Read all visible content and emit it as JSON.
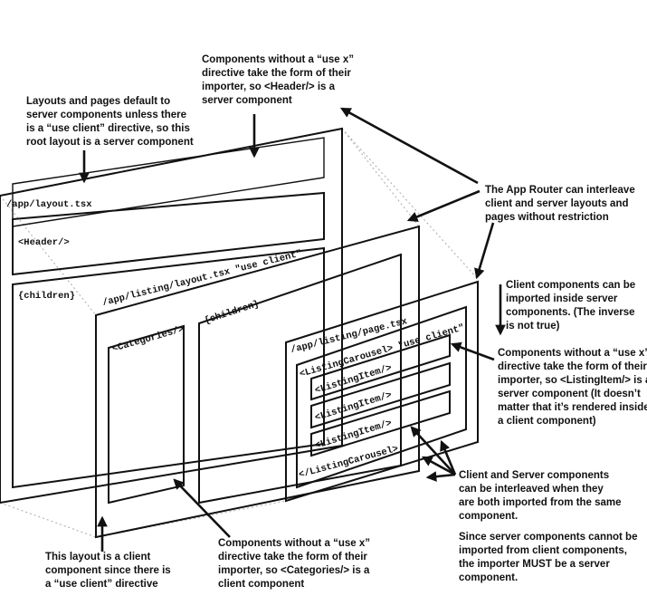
{
  "colors": {
    "server": "#1ee0ee",
    "client": "#f2ec1c",
    "panel": "#e2e2e2",
    "ink": "#111111"
  },
  "panels": {
    "root_layout": {
      "title": "/app/layout.tsx",
      "header": "<Header/>",
      "children": "{children}"
    },
    "listing_layout": {
      "title": "/app/listing/layout.tsx \"use client\"",
      "categories": "<Categories/>",
      "children": "{children}"
    },
    "listing_page": {
      "title": "/app/listing/page.tsx",
      "carousel_open": "<ListingCarousel> \"use client\"",
      "items": [
        "<ListingItem/>",
        "<ListingItem/>",
        "<ListingItem/>"
      ],
      "carousel_close": "</ListingCarousel>"
    }
  },
  "annotations": {
    "header_note": [
      "Components without a “use x”",
      "directive take the form of their",
      "importer, so <Header/> is a",
      "server component"
    ],
    "root_note": [
      "Layouts and pages default to",
      "server components unless there",
      "is a “use client” directive, so this",
      "root layout is a server component"
    ],
    "interleave_note": [
      "The App Router can interleave",
      "client and server layouts and",
      "pages without restriction"
    ],
    "import_note": [
      "Client components can be",
      "imported inside server",
      "components. (The inverse",
      "is not true)"
    ],
    "listing_item_note": [
      "Components without a “use x”",
      "directive take the form of their",
      "importer, so <ListingItem/> is a",
      "server component (It doesn’t",
      "matter that it’s rendered inside",
      "a client component)"
    ],
    "mixed_note": [
      "Client and Server components",
      "can be interleaved when they",
      "are both imported from the same",
      "component."
    ],
    "importer_note": [
      "Since server components cannot be",
      "imported from client components,",
      "the importer MUST be a server",
      "component."
    ],
    "categories_note": [
      "Components without a “use x”",
      "directive take the form of their",
      "importer, so <Categories/> is a",
      "client component"
    ],
    "client_layout_note": [
      "This layout is a client",
      "component since there is",
      "a “use client” directive"
    ]
  }
}
